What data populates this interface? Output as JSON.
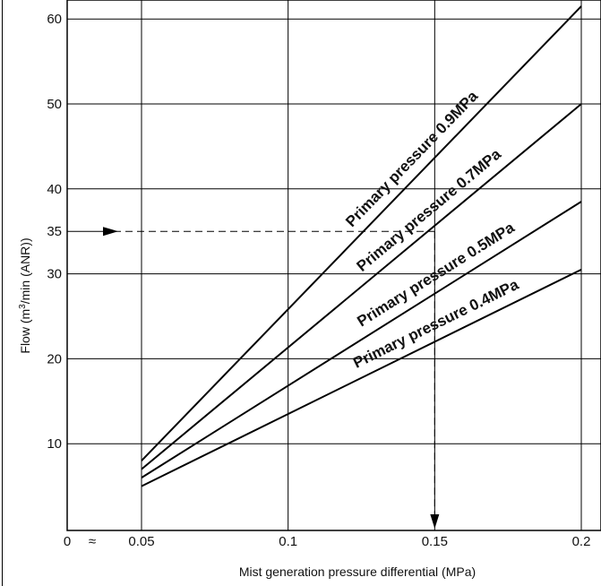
{
  "chart_data": {
    "type": "line",
    "xlabel": "Mist generation pressure differential (MPa)",
    "ylabel_main": "Flow (m",
    "ylabel_sup": "3",
    "ylabel_rest": "/min (ANR))",
    "xlim": [
      0.05,
      0.2
    ],
    "ylim": [
      0,
      62
    ],
    "x_ticks": [
      "0.05",
      "0.1",
      "0.15",
      "0.2"
    ],
    "x_tick_values": [
      0.05,
      0.1,
      0.15,
      0.2
    ],
    "x_origin_label": "0",
    "axis_break_mark": "≈",
    "y_ticks": [
      "10",
      "20",
      "30",
      "35",
      "40",
      "50",
      "60"
    ],
    "y_tick_values": [
      10,
      20,
      30,
      35,
      40,
      50,
      60
    ],
    "grid": true,
    "series": [
      {
        "name": "Primary pressure 0.9MPa",
        "x": [
          0.05,
          0.2
        ],
        "y": [
          8,
          61.5
        ]
      },
      {
        "name": "Primary pressure 0.7MPa",
        "x": [
          0.05,
          0.2
        ],
        "y": [
          7,
          50
        ]
      },
      {
        "name": "Primary pressure 0.5MPa",
        "x": [
          0.05,
          0.2
        ],
        "y": [
          6,
          38.5
        ]
      },
      {
        "name": "Primary pressure 0.4MPa",
        "x": [
          0.05,
          0.2
        ],
        "y": [
          5,
          30.5
        ]
      }
    ],
    "annotation": {
      "y_reference": 35,
      "x_reference": 0.15,
      "style": "dashed-arrow"
    }
  }
}
